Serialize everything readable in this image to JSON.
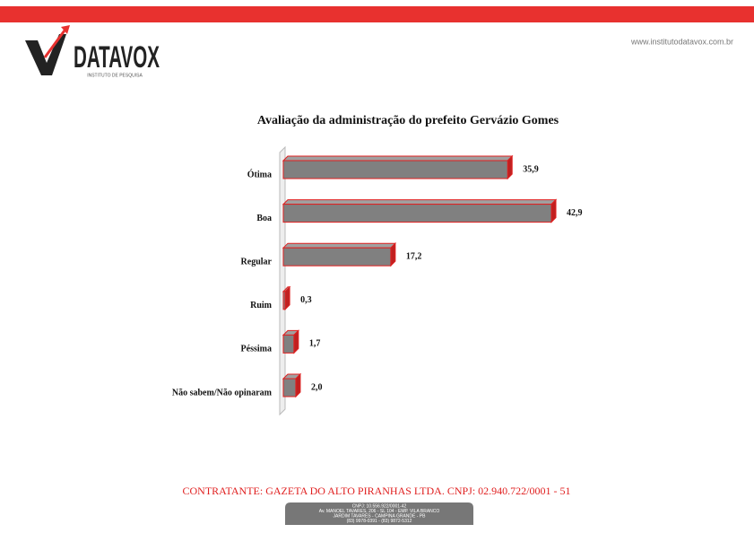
{
  "header": {
    "logo_text": "DATAVOX",
    "logo_subtitle": "INSTITUTO DE PESQUISA",
    "url": "www.institutodatavox.com.br"
  },
  "chart_data": {
    "type": "bar",
    "orientation": "horizontal",
    "title": "Avaliação da administração do prefeito Gervázio Gomes",
    "categories": [
      "Ótima",
      "Boa",
      "Regular",
      "Ruim",
      "Péssima",
      "Não sabem/Não opinaram"
    ],
    "values": [
      35.9,
      42.9,
      17.2,
      0.3,
      1.7,
      2.0
    ],
    "value_labels": [
      "35,9",
      "42,9",
      "17,2",
      "0,3",
      "1,7",
      "2,0"
    ],
    "color": "#808080",
    "edge_color": "#e02020"
  },
  "footer": {
    "contract": "CONTRATANTE: GAZETA DO ALTO PIRANHAS LTDA. CNPJ: 02.940.722/0001 - 51",
    "box_lines": [
      "CNPJ: 10.556.922/0001-42",
      "Av. MANOEL TAVARES, 206 - SL 104 - EMP. VILA BRANCO",
      "JARDIM TAVARES - CAMPINA GRANDE - PB",
      "(83) 9978-0391 - (83) 9872-5312"
    ]
  }
}
